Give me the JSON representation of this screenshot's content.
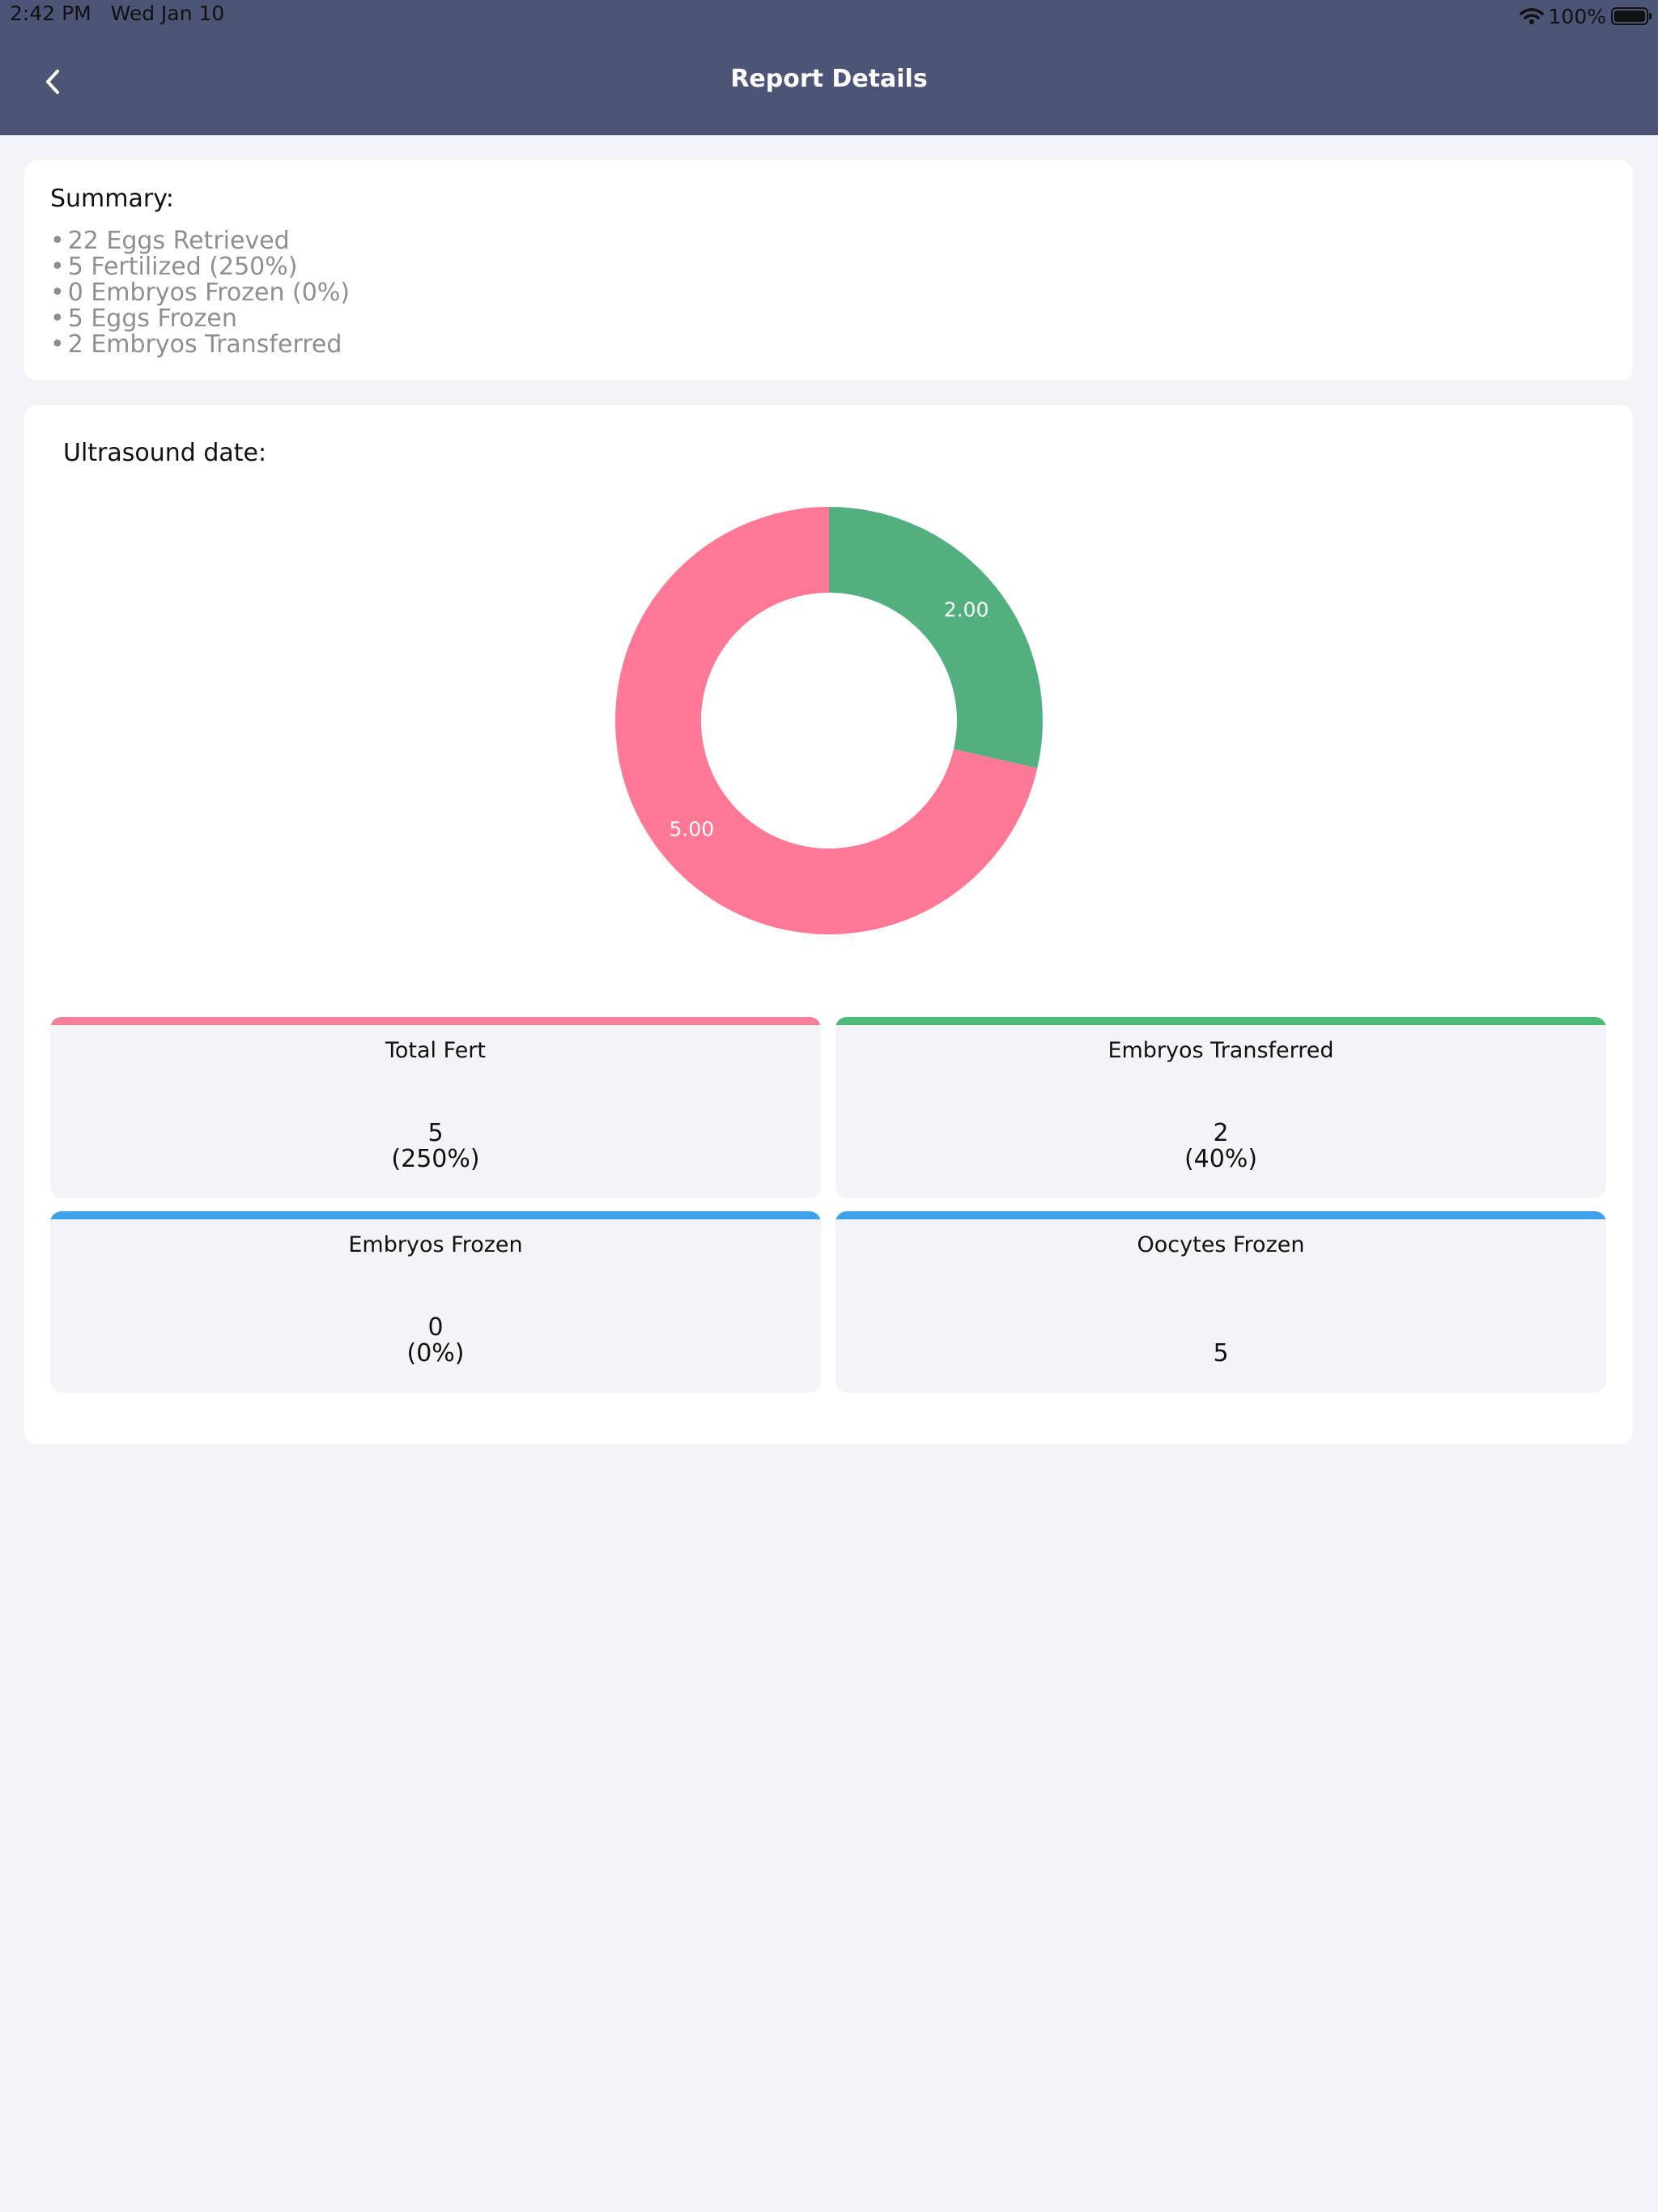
{
  "status_bar": {
    "time": "2:42 PM",
    "date": "Wed Jan 10",
    "battery": "100%",
    "battery_level": 100
  },
  "header": {
    "title": "Report Details",
    "back_icon": "chevron-left-icon"
  },
  "summary": {
    "title": "Summary:",
    "items": [
      "22 Eggs Retrieved",
      "5 Fertilized (250%)",
      "0 Embryos Frozen (0%)",
      "5 Eggs Frozen",
      "2 Embryos Transferred"
    ]
  },
  "chart": {
    "title": "Ultrasound date:"
  },
  "chart_data": {
    "type": "pie",
    "style": "donut",
    "title": "",
    "series": [
      {
        "value": 2.0,
        "label": "2.00",
        "color": "#52b07f"
      },
      {
        "value": 5.0,
        "label": "5.00",
        "color": "#ff7896"
      }
    ]
  },
  "metrics": [
    {
      "label": "Total Fert",
      "value": "5",
      "percent": "(250%)",
      "color": "#f4809a"
    },
    {
      "label": "Embryos Transferred",
      "value": "2",
      "percent": "(40%)",
      "color": "#4cbb79"
    },
    {
      "label": "Embryos Frozen",
      "value": "0",
      "percent": "(0%)",
      "color": "#3ea1ea"
    },
    {
      "label": "Oocytes Frozen",
      "value": "5",
      "percent": "",
      "color": "#3ea1ea"
    }
  ]
}
